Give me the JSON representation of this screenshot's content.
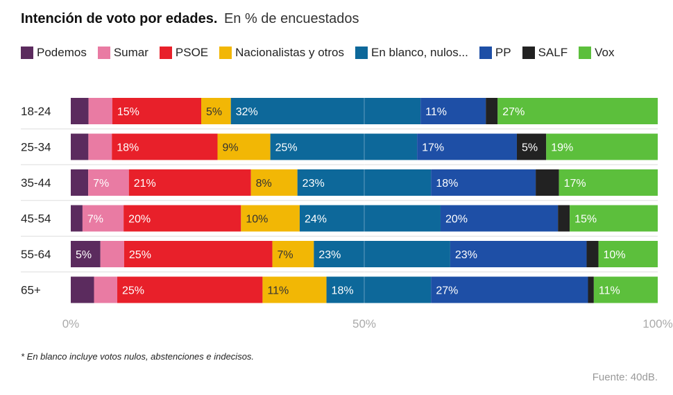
{
  "title": "Intención de voto por edades.",
  "subtitle": "En % de encuestados",
  "legend": [
    {
      "name": "Podemos",
      "color": "#5b2b5e"
    },
    {
      "name": "Sumar",
      "color": "#e97ba3"
    },
    {
      "name": "PSOE",
      "color": "#e8202a"
    },
    {
      "name": "Nacionalistas y otros",
      "color": "#f2b705"
    },
    {
      "name": "En blanco, nulos...",
      "color": "#0d689a"
    },
    {
      "name": "PP",
      "color": "#1e4fa6"
    },
    {
      "name": "SALF",
      "color": "#222222"
    },
    {
      "name": "Vox",
      "color": "#5cbf3c"
    }
  ],
  "footnote": "* En blanco incluye votos nulos, abstenciones e indecisos.",
  "source": "Fuente: 40dB.",
  "chart_data": {
    "type": "bar",
    "orientation": "horizontal",
    "stacked": true,
    "categories": [
      "18-24",
      "25-34",
      "35-44",
      "45-54",
      "55-64",
      "65+"
    ],
    "xlim": [
      0,
      100
    ],
    "ticks": [
      "0%",
      "50%",
      "100%"
    ],
    "series": [
      {
        "name": "Podemos",
        "color": "#5b2b5e",
        "values": [
          3,
          3,
          3,
          2,
          5,
          4
        ],
        "labels": [
          "",
          "",
          "",
          "",
          "5%",
          ""
        ]
      },
      {
        "name": "Sumar",
        "color": "#e97ba3",
        "values": [
          4,
          4,
          7,
          7,
          4,
          4
        ],
        "labels": [
          "",
          "",
          "7%",
          "7%",
          "",
          ""
        ]
      },
      {
        "name": "PSOE",
        "color": "#e8202a",
        "values": [
          15,
          18,
          21,
          20,
          25,
          25
        ],
        "labels": [
          "15%",
          "18%",
          "21%",
          "20%",
          "25%",
          "25%"
        ]
      },
      {
        "name": "Nacionalistas y otros",
        "color": "#f2b705",
        "values": [
          5,
          9,
          8,
          10,
          7,
          11
        ],
        "labels": [
          "5%",
          "9%",
          "8%",
          "10%",
          "7%",
          "11%"
        ]
      },
      {
        "name": "En blanco, nulos...",
        "color": "#0d689a",
        "values": [
          32,
          25,
          23,
          24,
          23,
          18
        ],
        "labels": [
          "32%",
          "25%",
          "23%",
          "24%",
          "23%",
          "18%"
        ]
      },
      {
        "name": "PP",
        "color": "#1e4fa6",
        "values": [
          11,
          17,
          18,
          20,
          23,
          27
        ],
        "labels": [
          "11%",
          "17%",
          "18%",
          "20%",
          "23%",
          "27%"
        ]
      },
      {
        "name": "SALF",
        "color": "#222222",
        "values": [
          2,
          5,
          4,
          2,
          2,
          1
        ],
        "labels": [
          "",
          "5%",
          "",
          "",
          "",
          ""
        ]
      },
      {
        "name": "Vox",
        "color": "#5cbf3c",
        "values": [
          27,
          19,
          17,
          15,
          10,
          11
        ],
        "labels": [
          "27%",
          "19%",
          "17%",
          "15%",
          "10%",
          "11%"
        ]
      }
    ]
  }
}
